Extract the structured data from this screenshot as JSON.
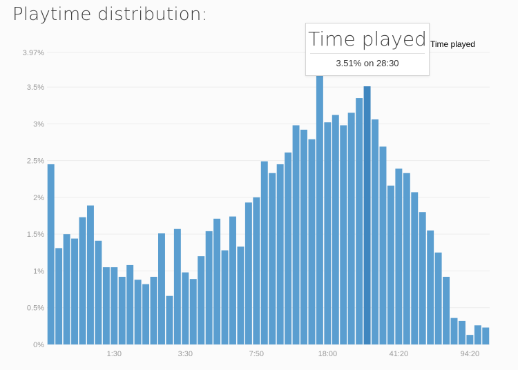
{
  "page": {
    "title": "Playtime distribution:"
  },
  "colors": {
    "bar": "#5a9ed0",
    "bar_highlight": "#3f86bf",
    "grid": "#ececec",
    "background": "#fbfbfb"
  },
  "tooltip": {
    "title": "Time played",
    "value": "3.51% on 28:30"
  },
  "chart_data": {
    "type": "bar",
    "title": "Playtime distribution:",
    "xlabel": "",
    "ylabel": "",
    "ylim": [
      0,
      3.97
    ],
    "y_ticks": [
      0,
      0.5,
      1,
      1.5,
      2,
      2.5,
      3,
      3.5,
      3.97
    ],
    "y_tick_labels": [
      "0%",
      "0.5%",
      "1%",
      "1.5%",
      "2%",
      "2.5%",
      "3%",
      "3.5%",
      "3.97%"
    ],
    "x_tick_labels": [
      {
        "label": "1:30",
        "index": 8
      },
      {
        "label": "3:30",
        "index": 17
      },
      {
        "label": "7:50",
        "index": 26
      },
      {
        "label": "18:00",
        "index": 35
      },
      {
        "label": "41:20",
        "index": 44
      },
      {
        "label": "94:20",
        "index": 53
      }
    ],
    "legend": [
      "Time played"
    ],
    "legend_position": "top-right",
    "grid": true,
    "highlight_index": 40,
    "series": [
      {
        "name": "Time played",
        "values": [
          2.45,
          1.31,
          1.5,
          1.44,
          1.73,
          1.89,
          1.41,
          1.05,
          1.05,
          0.92,
          1.08,
          0.88,
          0.82,
          0.92,
          1.51,
          0.66,
          1.57,
          0.98,
          0.89,
          1.2,
          1.54,
          1.71,
          1.28,
          1.74,
          1.33,
          1.93,
          2.0,
          2.49,
          2.33,
          2.45,
          2.61,
          2.98,
          2.92,
          2.79,
          3.74,
          3.02,
          3.12,
          2.98,
          3.15,
          3.35,
          3.51,
          3.06,
          2.69,
          2.16,
          2.39,
          2.33,
          2.07,
          1.8,
          1.55,
          1.25,
          0.92,
          0.36,
          0.32,
          0.13,
          0.26,
          0.23
        ]
      }
    ]
  }
}
